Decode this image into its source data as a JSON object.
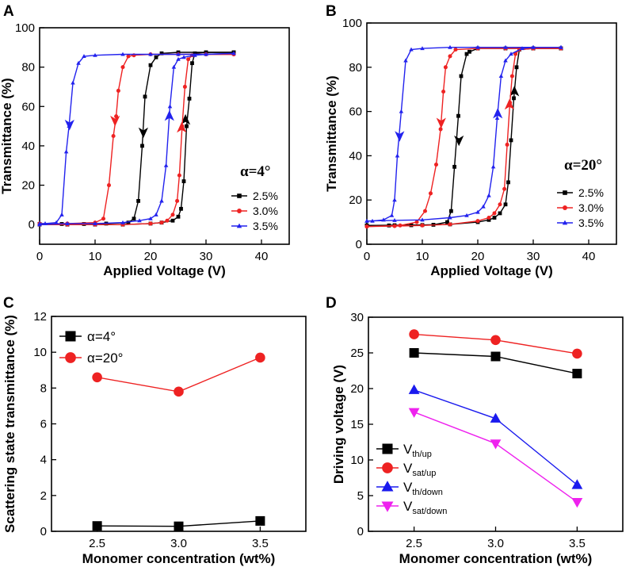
{
  "panels": [
    {
      "letter": "A",
      "chart_data": {
        "type": "line",
        "title": "",
        "xlabel": "Applied Voltage (V)",
        "ylabel": "Transmittance (%)",
        "xlim": [
          0,
          45
        ],
        "ylim": [
          -10,
          100
        ],
        "xticks": [
          0,
          10,
          20,
          30,
          40
        ],
        "yticks": [
          0,
          20,
          40,
          60,
          80,
          100
        ],
        "annotation": "α=4°",
        "legend": [
          "2.5%",
          "3.0%",
          "3.5%"
        ],
        "series": [
          {
            "name": "2.5%",
            "color": "#000000",
            "marker": "square",
            "up": [
              [
                0,
                0
              ],
              [
                5,
                0
              ],
              [
                10,
                0
              ],
              [
                15,
                0
              ],
              [
                20,
                0.5
              ],
              [
                22,
                1
              ],
              [
                24,
                2
              ],
              [
                25,
                4
              ],
              [
                25.5,
                8
              ],
              [
                26,
                22
              ],
              [
                26.5,
                50
              ],
              [
                27,
                64
              ],
              [
                27.5,
                82
              ],
              [
                28,
                87
              ],
              [
                30,
                87.5
              ],
              [
                35,
                87.5
              ]
            ],
            "down": [
              [
                35,
                87.5
              ],
              [
                30,
                87.5
              ],
              [
                25,
                87.5
              ],
              [
                22,
                87
              ],
              [
                21,
                85
              ],
              [
                20,
                81
              ],
              [
                19,
                65
              ],
              [
                18.5,
                40
              ],
              [
                17.8,
                12
              ],
              [
                17,
                3
              ],
              [
                16,
                1
              ],
              [
                12,
                0.5
              ],
              [
                8,
                0.3
              ],
              [
                4,
                0.3
              ],
              [
                0,
                0.3
              ]
            ],
            "arrow_up": [
              26.3,
              52
            ],
            "arrow_down": [
              18.7,
              48
            ]
          },
          {
            "name": "3.0%",
            "color": "#ee2222",
            "marker": "circle",
            "up": [
              [
                0,
                0
              ],
              [
                5,
                0
              ],
              [
                10,
                0
              ],
              [
                15,
                0
              ],
              [
                20,
                0.5
              ],
              [
                22,
                1
              ],
              [
                23,
                2
              ],
              [
                24,
                5
              ],
              [
                24.8,
                12
              ],
              [
                25.2,
                25
              ],
              [
                25.7,
                50
              ],
              [
                26.2,
                70
              ],
              [
                26.8,
                84
              ],
              [
                27.5,
                86
              ],
              [
                30,
                86.5
              ],
              [
                35,
                86.5
              ]
            ],
            "down": [
              [
                35,
                86.5
              ],
              [
                30,
                86.5
              ],
              [
                25,
                86.5
              ],
              [
                20,
                86.5
              ],
              [
                17,
                86
              ],
              [
                16,
                85.5
              ],
              [
                15,
                80
              ],
              [
                14.2,
                68
              ],
              [
                13.8,
                55
              ],
              [
                13.3,
                45
              ],
              [
                12.5,
                20
              ],
              [
                11.5,
                3
              ],
              [
                10,
                1
              ],
              [
                5,
                0.5
              ],
              [
                0,
                0.5
              ]
            ],
            "arrow_up": [
              25.6,
              48
            ],
            "arrow_down": [
              13.6,
              54
            ]
          },
          {
            "name": "3.5%",
            "color": "#2222ee",
            "marker": "triangle",
            "up": [
              [
                0,
                0
              ],
              [
                5,
                0.5
              ],
              [
                10,
                0.5
              ],
              [
                15,
                1
              ],
              [
                18,
                2
              ],
              [
                20,
                3
              ],
              [
                21,
                5
              ],
              [
                22,
                12
              ],
              [
                22.8,
                30
              ],
              [
                23.5,
                60
              ],
              [
                24.2,
                80
              ],
              [
                25,
                84
              ],
              [
                26,
                85
              ],
              [
                28,
                86
              ],
              [
                30,
                86.5
              ],
              [
                35,
                87
              ]
            ],
            "down": [
              [
                35,
                87
              ],
              [
                30,
                86.5
              ],
              [
                25,
                86.5
              ],
              [
                20,
                86.5
              ],
              [
                15,
                86.5
              ],
              [
                10,
                86
              ],
              [
                8,
                85.5
              ],
              [
                7,
                82
              ],
              [
                6,
                72
              ],
              [
                5.3,
                50
              ],
              [
                4.8,
                37
              ],
              [
                4,
                5
              ],
              [
                3,
                1
              ],
              [
                1,
                0.5
              ],
              [
                0,
                0.5
              ]
            ],
            "arrow_up": [
              23.4,
              54
            ],
            "arrow_down": [
              5.4,
              52
            ]
          }
        ]
      }
    },
    {
      "letter": "B",
      "chart_data": {
        "type": "line",
        "title": "",
        "xlabel": "Applied Voltage (V)",
        "ylabel": "Transmittance (%)",
        "xlim": [
          0,
          45
        ],
        "ylim": [
          0,
          100
        ],
        "xticks": [
          0,
          10,
          20,
          30,
          40
        ],
        "yticks": [
          0,
          20,
          40,
          60,
          80,
          100
        ],
        "annotation": "α=20°",
        "legend": [
          "2.5%",
          "3.0%",
          "3.5%"
        ],
        "series": [
          {
            "name": "2.5%",
            "color": "#000000",
            "marker": "square",
            "up": [
              [
                0,
                8.5
              ],
              [
                5,
                8.6
              ],
              [
                10,
                8.7
              ],
              [
                15,
                9
              ],
              [
                20,
                10
              ],
              [
                22,
                11
              ],
              [
                23,
                12
              ],
              [
                24,
                14
              ],
              [
                25,
                18
              ],
              [
                25.5,
                28
              ],
              [
                26,
                47
              ],
              [
                26.5,
                66
              ],
              [
                27,
                80
              ],
              [
                27.5,
                88
              ],
              [
                30,
                88.5
              ],
              [
                35,
                88.5
              ]
            ],
            "down": [
              [
                35,
                88.5
              ],
              [
                30,
                88.5
              ],
              [
                25,
                88.5
              ],
              [
                20,
                88.5
              ],
              [
                18.5,
                87
              ],
              [
                18,
                86
              ],
              [
                17,
                76
              ],
              [
                16.5,
                58
              ],
              [
                15.8,
                35
              ],
              [
                15.2,
                15
              ],
              [
                14.5,
                10
              ],
              [
                12,
                8.8
              ],
              [
                8,
                8.6
              ],
              [
                4,
                8.5
              ],
              [
                0,
                8.5
              ]
            ],
            "arrow_up": [
              26.6,
              68
            ],
            "arrow_down": [
              16.6,
              48
            ]
          },
          {
            "name": "3.0%",
            "color": "#ee2222",
            "marker": "circle",
            "up": [
              [
                0,
                8
              ],
              [
                5,
                8.2
              ],
              [
                10,
                8.5
              ],
              [
                15,
                9
              ],
              [
                20,
                10.5
              ],
              [
                22,
                12
              ],
              [
                23,
                14
              ],
              [
                24,
                18
              ],
              [
                24.8,
                25
              ],
              [
                25.3,
                45
              ],
              [
                25.8,
                64
              ],
              [
                26.2,
                76
              ],
              [
                26.8,
                86
              ],
              [
                27.5,
                88
              ],
              [
                30,
                88.5
              ],
              [
                35,
                88.5
              ]
            ],
            "down": [
              [
                35,
                88.5
              ],
              [
                30,
                88.5
              ],
              [
                25,
                88.5
              ],
              [
                20,
                88.5
              ],
              [
                16,
                88
              ],
              [
                15,
                85
              ],
              [
                14.2,
                80
              ],
              [
                13.8,
                69
              ],
              [
                13.3,
                52
              ],
              [
                12.5,
                36
              ],
              [
                11.5,
                23
              ],
              [
                10.5,
                15
              ],
              [
                9,
                10
              ],
              [
                6,
                8.5
              ],
              [
                0,
                8
              ]
            ],
            "arrow_up": [
              25.7,
              62
            ],
            "arrow_down": [
              13.4,
              56
            ]
          },
          {
            "name": "3.5%",
            "color": "#2222ee",
            "marker": "triangle",
            "up": [
              [
                0,
                10.5
              ],
              [
                5,
                10.8
              ],
              [
                10,
                11
              ],
              [
                15,
                12
              ],
              [
                18,
                13
              ],
              [
                20,
                14.5
              ],
              [
                21,
                17
              ],
              [
                22,
                22
              ],
              [
                22.8,
                35
              ],
              [
                23.5,
                57
              ],
              [
                24.2,
                76
              ],
              [
                25,
                83
              ],
              [
                26,
                86
              ],
              [
                28,
                88.5
              ],
              [
                30,
                89
              ],
              [
                35,
                89
              ]
            ],
            "down": [
              [
                35,
                89
              ],
              [
                30,
                89
              ],
              [
                25,
                89
              ],
              [
                20,
                89
              ],
              [
                15,
                89
              ],
              [
                10,
                88.5
              ],
              [
                8,
                88
              ],
              [
                7,
                83
              ],
              [
                6.2,
                60
              ],
              [
                5.5,
                40
              ],
              [
                5,
                20
              ],
              [
                4.5,
                13
              ],
              [
                3,
                11
              ],
              [
                1,
                10.5
              ],
              [
                0,
                10.5
              ]
            ],
            "arrow_up": [
              23.6,
              58
            ],
            "arrow_down": [
              5.9,
              50
            ]
          }
        ]
      }
    },
    {
      "letter": "C",
      "chart_data": {
        "type": "line",
        "title": "",
        "xlabel": "Monomer concentration (wt%)",
        "ylabel": "Scattering state transmittance (%)",
        "categories": [
          "2.5",
          "3.0",
          "3.5"
        ],
        "xlim": [
          2.5,
          3.5
        ],
        "ylim": [
          0,
          12
        ],
        "yticks": [
          0,
          2,
          4,
          6,
          8,
          10,
          12
        ],
        "series": [
          {
            "name": "α=4°",
            "color": "#000000",
            "marker": "square",
            "values": [
              0.3,
              0.28,
              0.58
            ]
          },
          {
            "name": "α=20°",
            "color": "#ee2222",
            "marker": "circle",
            "values": [
              8.6,
              7.8,
              9.7
            ]
          }
        ]
      }
    },
    {
      "letter": "D",
      "chart_data": {
        "type": "line",
        "title": "",
        "xlabel": "Monomer concentration (wt%)",
        "ylabel": "Driving voltage (V)",
        "categories": [
          "2.5",
          "3.0",
          "3.5"
        ],
        "xlim": [
          2.5,
          3.5
        ],
        "ylim": [
          0,
          30
        ],
        "yticks": [
          0,
          5,
          10,
          15,
          20,
          25,
          30
        ],
        "series": [
          {
            "name": "V",
            "sub": "th/up",
            "color": "#000000",
            "marker": "square",
            "values": [
              25.0,
              24.5,
              22.1
            ]
          },
          {
            "name": "V",
            "sub": "sat/up",
            "color": "#ee2222",
            "marker": "circle",
            "values": [
              27.6,
              26.8,
              24.9
            ]
          },
          {
            "name": "V",
            "sub": "th/down",
            "color": "#1a1aee",
            "marker": "triangle",
            "values": [
              19.8,
              15.8,
              6.5
            ]
          },
          {
            "name": "V",
            "sub": "sat/down",
            "color": "#ee22ee",
            "marker": "triangle-down",
            "values": [
              16.7,
              12.3,
              4.1
            ]
          }
        ]
      }
    }
  ]
}
